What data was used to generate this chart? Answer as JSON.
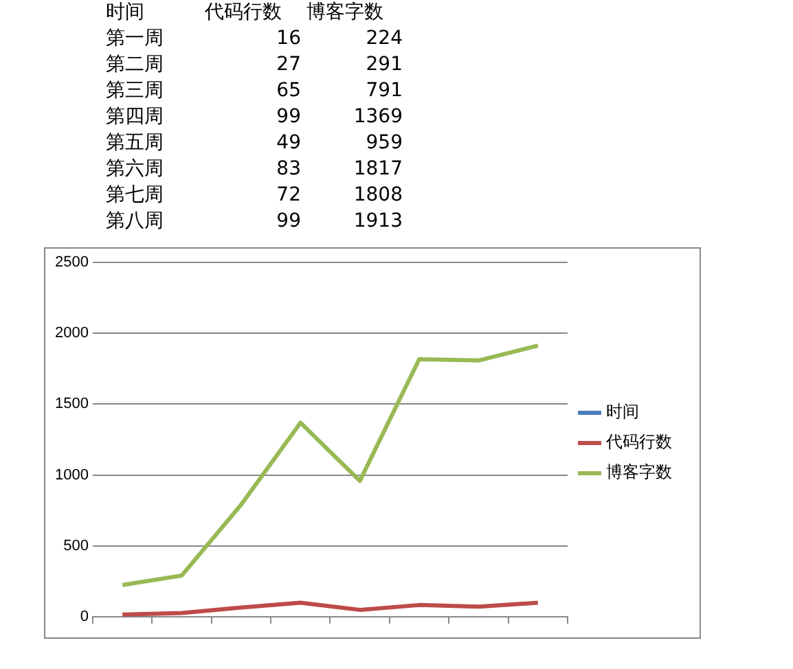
{
  "chart_data": [
    {
      "type": "other",
      "xlabel": "时间",
      "categories": [
        "第一周",
        "第二周",
        "第三周",
        "第四周",
        "第五周",
        "第六周",
        "第七周",
        "第八周"
      ],
      "series": [
        {
          "name": "代码行数",
          "values": [
            16,
            27,
            65,
            99,
            49,
            83,
            72,
            99
          ]
        },
        {
          "name": "博客字数",
          "values": [
            224,
            291,
            791,
            1369,
            959,
            1817,
            1808,
            1913
          ]
        }
      ],
      "data_labels": true
    },
    {
      "type": "line",
      "categories": [
        null,
        null,
        null,
        null,
        null,
        null,
        null,
        null
      ],
      "series": [
        {
          "name": "时间",
          "color": "#4a7ebb",
          "values": [
            null,
            null,
            null,
            null,
            null,
            null,
            null,
            null
          ]
        },
        {
          "name": "代码行数",
          "color": "#be4b48",
          "values": [
            16,
            27,
            65,
            99,
            49,
            83,
            72,
            99
          ]
        },
        {
          "name": "博客字数",
          "color": "#98b954",
          "values": [
            224,
            291,
            791,
            1369,
            959,
            1817,
            1808,
            1913
          ]
        }
      ],
      "ylim": [
        0,
        2500
      ],
      "yticks": [
        0,
        500,
        1000,
        1500,
        2000,
        2500
      ],
      "grid": "y",
      "legend": "right",
      "tick_labels": "y",
      "marker": "none",
      "line_style": "solid"
    }
  ]
}
